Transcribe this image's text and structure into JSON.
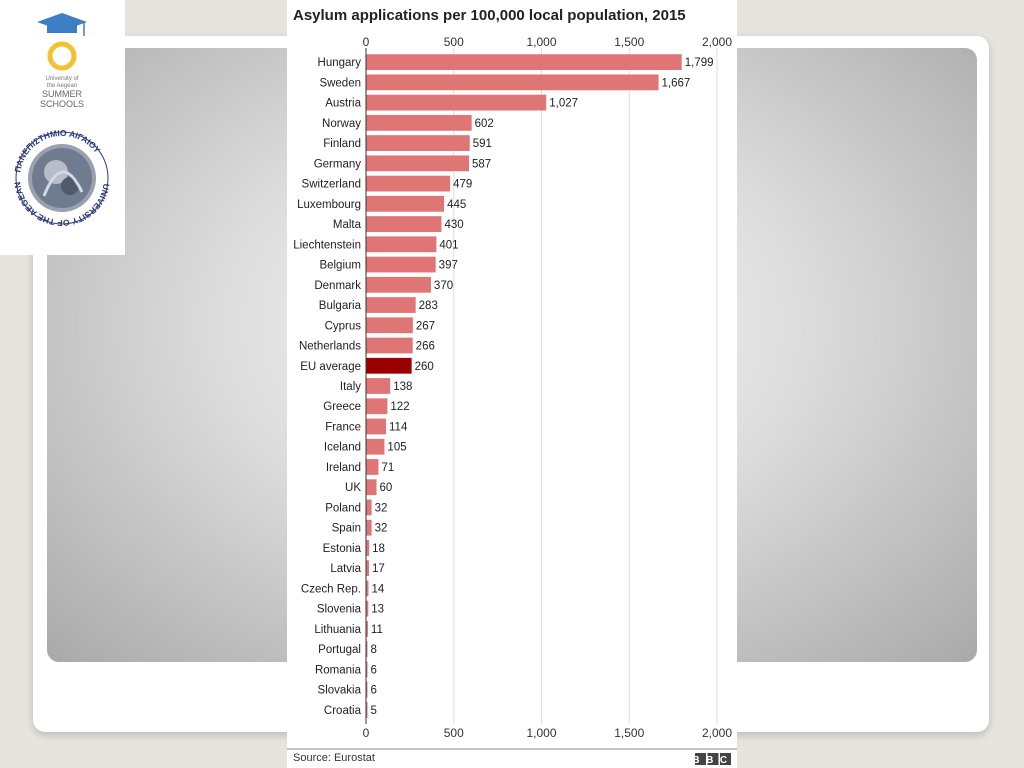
{
  "slide": {
    "logo_summer_line1": "University of",
    "logo_summer_line2": "the Aegean",
    "logo_summer_line3": "SUMMER",
    "logo_summer_line4": "SCHOOLS",
    "seal_text_greek": "ΠΑΝΕΠΙΣΤΗΜΙΟ ΑΙΓΑΙΟΥ",
    "seal_text_english": "UNIVERSITY OF THE AEGEAN",
    "colors": {
      "background": "#e6e4dc",
      "accent_blue": "#3d7fc4",
      "accent_yellow": "#f2c230",
      "seal_navy": "#2b3a7a"
    }
  },
  "chart_data": {
    "type": "bar",
    "orientation": "horizontal",
    "title": "Asylum applications per 100,000 local population, 2015",
    "source": "Source: Eurostat",
    "brand": "BBC",
    "xlim": [
      0,
      2000
    ],
    "xticks": [
      0,
      500,
      1000,
      1500,
      2000
    ],
    "xtick_labels": [
      "0",
      "500",
      "1,000",
      "1,500",
      "2,000"
    ],
    "grid": true,
    "categories": [
      "Hungary",
      "Sweden",
      "Austria",
      "Norway",
      "Finland",
      "Germany",
      "Switzerland",
      "Luxembourg",
      "Malta",
      "Liechtenstein",
      "Belgium",
      "Denmark",
      "Bulgaria",
      "Cyprus",
      "Netherlands",
      "EU average",
      "Italy",
      "Greece",
      "France",
      "Iceland",
      "Ireland",
      "UK",
      "Poland",
      "Spain",
      "Estonia",
      "Latvia",
      "Czech Rep.",
      "Slovenia",
      "Lithuania",
      "Portugal",
      "Romania",
      "Slovakia",
      "Croatia"
    ],
    "values": [
      1799,
      1667,
      1027,
      602,
      591,
      587,
      479,
      445,
      430,
      401,
      397,
      370,
      283,
      267,
      266,
      260,
      138,
      122,
      114,
      105,
      71,
      60,
      32,
      32,
      18,
      17,
      14,
      13,
      11,
      8,
      6,
      6,
      5
    ],
    "value_labels": [
      "1,799",
      "1,667",
      "1,027",
      "602",
      "591",
      "587",
      "479",
      "445",
      "430",
      "401",
      "397",
      "370",
      "283",
      "267",
      "266",
      "260",
      "138",
      "122",
      "114",
      "105",
      "71",
      "60",
      "32",
      "32",
      "18",
      "17",
      "14",
      "13",
      "11",
      "8",
      "6",
      "6",
      "5"
    ],
    "bar_color": "#e07575",
    "highlight_category": "EU average",
    "highlight_color": "#990000"
  }
}
